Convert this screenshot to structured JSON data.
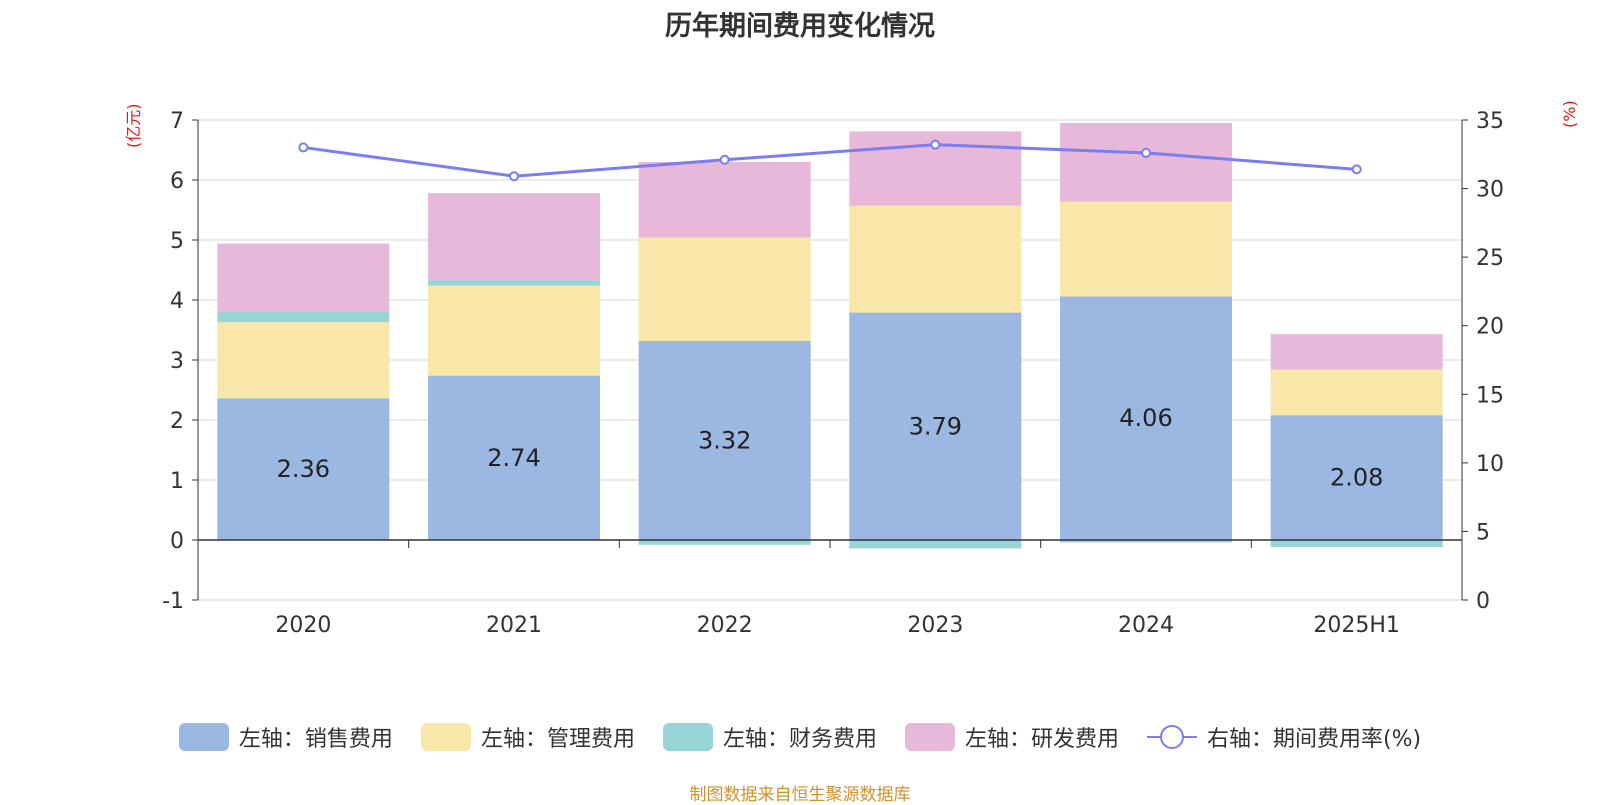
{
  "chart_data": {
    "type": "bar",
    "title": "历年期间费用变化情况",
    "categories": [
      "2020",
      "2021",
      "2022",
      "2023",
      "2024",
      "2025H1"
    ],
    "y_left": {
      "unit": "(亿元)",
      "ylim": [
        -1,
        7
      ],
      "ticks": [
        "-1",
        "0",
        "1",
        "2",
        "3",
        "4",
        "5",
        "6",
        "7"
      ]
    },
    "y_right": {
      "unit": "(%)",
      "ylim": [
        0,
        35
      ],
      "ticks": [
        "0",
        "5",
        "10",
        "15",
        "20",
        "25",
        "30",
        "35"
      ]
    },
    "stacked": true,
    "grid": true,
    "legend_position": "bottom",
    "series": [
      {
        "name": "左轴：销售费用",
        "axis": "left",
        "type": "bar",
        "color": "#9bb8e2",
        "values": [
          2.36,
          2.74,
          3.32,
          3.79,
          4.06,
          2.08
        ],
        "labels": [
          "2.36",
          "2.74",
          "3.32",
          "3.79",
          "4.06",
          "2.08"
        ]
      },
      {
        "name": "左轴：管理费用",
        "axis": "left",
        "type": "bar",
        "color": "#f8e7a8",
        "values": [
          1.27,
          1.5,
          1.72,
          1.78,
          1.58,
          0.76
        ]
      },
      {
        "name": "左轴：财务费用",
        "axis": "left",
        "type": "bar",
        "color": "#96d5d6",
        "values": [
          0.18,
          0.09,
          -0.08,
          -0.14,
          -0.04,
          -0.12
        ]
      },
      {
        "name": "左轴：研发费用",
        "axis": "left",
        "type": "bar",
        "color": "#e8b8da",
        "values": [
          1.13,
          1.45,
          1.26,
          1.24,
          1.31,
          0.59
        ]
      },
      {
        "name": "右轴：期间费用率(%)",
        "axis": "right",
        "type": "line",
        "color": "#7b7ef0",
        "values": [
          33.0,
          30.9,
          32.1,
          33.2,
          32.6,
          31.4
        ]
      }
    ]
  },
  "source_text": "制图数据来自恒生聚源数据库"
}
